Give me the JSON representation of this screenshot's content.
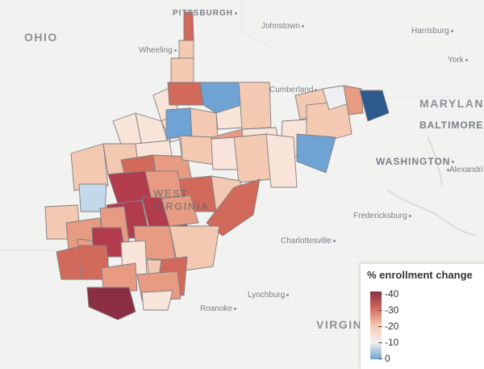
{
  "map": {
    "colors": {
      "c40": "#8b2e44",
      "c35": "#b23c4c",
      "c30": "#d26a5c",
      "c25": "#e69b82",
      "c20": "#f4c9b2",
      "c15": "#f8e4d9",
      "c10": "#eef0f3",
      "c5": "#c3d8ea",
      "c2": "#6fa3d3",
      "c0": "#2c5a8c"
    },
    "counties": [
      {
        "name": "county-hancock",
        "value": -30
      },
      {
        "name": "county-brooke",
        "value": -18
      },
      {
        "name": "county-ohio",
        "value": -20
      },
      {
        "name": "county-marshall",
        "value": -16
      },
      {
        "name": "county-wetzel",
        "value": -12
      },
      {
        "name": "county-monongalia",
        "value": -28
      },
      {
        "name": "county-preston",
        "value": -2
      },
      {
        "name": "county-tyler",
        "value": -14
      },
      {
        "name": "county-pleasants",
        "value": -15
      },
      {
        "name": "county-doddridge",
        "value": -4
      },
      {
        "name": "county-harrison",
        "value": -18
      },
      {
        "name": "county-marion",
        "value": -14
      },
      {
        "name": "county-taylor",
        "value": -12
      },
      {
        "name": "county-barbour",
        "value": -22
      },
      {
        "name": "county-tucker",
        "value": -20
      },
      {
        "name": "county-grant",
        "value": -14
      },
      {
        "name": "county-mineral",
        "value": -18
      },
      {
        "name": "county-hampshire",
        "value": -16
      },
      {
        "name": "county-hardy",
        "value": -20
      },
      {
        "name": "county-morgan",
        "value": -10
      },
      {
        "name": "county-berkeley",
        "value": -24
      },
      {
        "name": "county-jefferson",
        "value": -4
      },
      {
        "name": "county-jefferson-east",
        "value": 0
      },
      {
        "name": "county-wood",
        "value": -18
      },
      {
        "name": "county-ritchie",
        "value": -14
      },
      {
        "name": "county-wirt",
        "value": -28
      },
      {
        "name": "county-gilmer",
        "value": -24
      },
      {
        "name": "county-lewis",
        "value": -20
      },
      {
        "name": "county-upshur",
        "value": -14
      },
      {
        "name": "county-randolph",
        "value": -20
      },
      {
        "name": "county-pendleton",
        "value": -16
      },
      {
        "name": "county-jackson",
        "value": -20
      },
      {
        "name": "county-roane",
        "value": -34
      },
      {
        "name": "county-calhoun",
        "value": -26
      },
      {
        "name": "county-braxton",
        "value": -28
      },
      {
        "name": "county-webster",
        "value": -18
      },
      {
        "name": "county-pocahontas",
        "value": -28
      },
      {
        "name": "county-mason",
        "value": -6
      },
      {
        "name": "county-putnam",
        "value": -18
      },
      {
        "name": "county-kanawha",
        "value": -32
      },
      {
        "name": "county-clay",
        "value": -34
      },
      {
        "name": "county-nicholas",
        "value": -25
      },
      {
        "name": "county-cabell",
        "value": -22
      },
      {
        "name": "county-wayne",
        "value": -26
      },
      {
        "name": "county-lincoln",
        "value": -26
      },
      {
        "name": "county-boone",
        "value": -34
      },
      {
        "name": "county-fayette",
        "value": -24
      },
      {
        "name": "county-greenbrier",
        "value": -18
      },
      {
        "name": "county-mingo",
        "value": -28
      },
      {
        "name": "county-logan",
        "value": -30
      },
      {
        "name": "county-raleigh",
        "value": -16
      },
      {
        "name": "county-wyoming",
        "value": -26
      },
      {
        "name": "county-summers",
        "value": -20
      },
      {
        "name": "county-monroe",
        "value": -28
      },
      {
        "name": "county-mercer",
        "value": -26
      },
      {
        "name": "county-mcdowell",
        "value": -40
      },
      {
        "name": "county-monroe-south",
        "value": -16
      }
    ]
  },
  "places": {
    "pittsburgh": "PITTSBURGH",
    "johnstown": "Johnstown",
    "harrisburg": "Harrisburg",
    "ohio": "OHIO",
    "wheeling": "Wheeling",
    "york": "York",
    "cumberland": "Cumberland",
    "maryland": "MARYLAND",
    "baltimore": "BALTIMORE",
    "washington": "WASHINGTON",
    "alexandria": "Alexandri",
    "fredericksburg": "Fredericksburg",
    "charlottesville": "Charlottesville",
    "lynchburg": "Lynchburg",
    "roanoke": "Roanoke",
    "virginia": "VIRGINIA",
    "west_virginia": "WEST VIRGINIA"
  },
  "legend": {
    "title": "% enrollment change",
    "ticks": [
      "-40",
      "-30",
      "-20",
      "-10",
      "0"
    ],
    "gradient": [
      "#8b2e44",
      "#d26a5c",
      "#f4c9b2",
      "#f4efef",
      "#6fa3d3"
    ]
  }
}
